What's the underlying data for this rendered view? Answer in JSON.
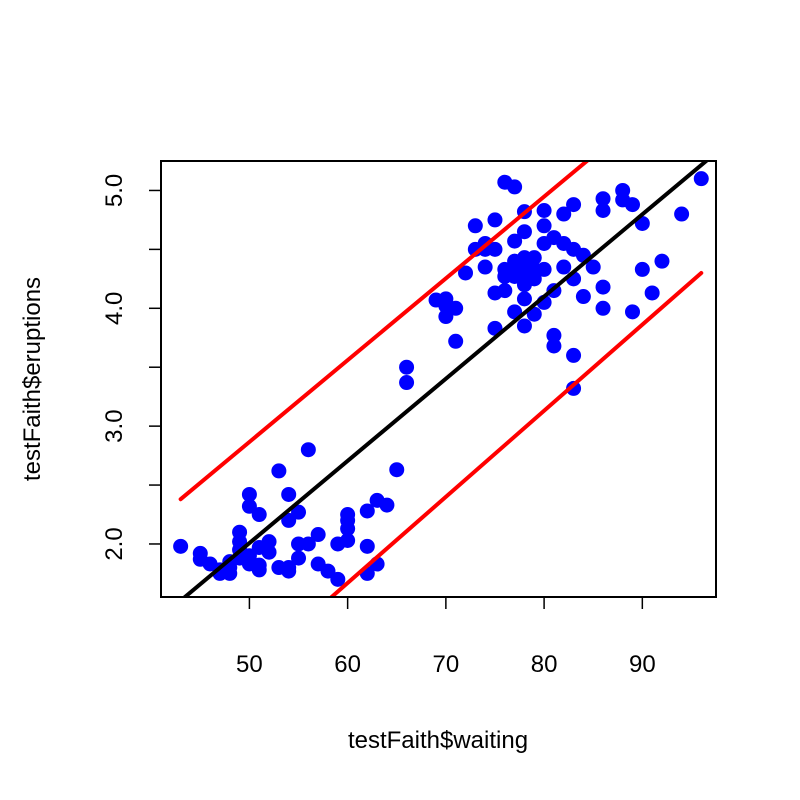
{
  "chart_data": {
    "type": "scatter",
    "title": "",
    "xlabel": "testFaith$waiting",
    "ylabel": "testFaith$eruptions",
    "xlim": [
      41,
      97.5
    ],
    "ylim": [
      1.55,
      5.25
    ],
    "x_ticks": [
      50,
      60,
      70,
      80,
      90
    ],
    "y_ticks": [
      2.0,
      2.5,
      3.0,
      3.5,
      4.0,
      4.5,
      5.0
    ],
    "y_tick_labels": [
      "2.0",
      "",
      "3.0",
      "",
      "4.0",
      "",
      "5.0"
    ],
    "grid": false,
    "legend": "none",
    "series": [
      {
        "kind": "points",
        "color": "#0000ff",
        "points": [
          [
            43,
            1.98
          ],
          [
            45,
            1.92
          ],
          [
            45,
            1.87
          ],
          [
            46,
            1.83
          ],
          [
            47,
            1.78
          ],
          [
            47,
            1.75
          ],
          [
            48,
            1.8
          ],
          [
            48,
            1.85
          ],
          [
            48,
            1.75
          ],
          [
            49,
            1.88
          ],
          [
            49,
            1.95
          ],
          [
            49,
            2.02
          ],
          [
            49,
            2.1
          ],
          [
            50,
            2.42
          ],
          [
            50,
            2.32
          ],
          [
            50,
            1.83
          ],
          [
            50,
            1.9
          ],
          [
            51,
            2.25
          ],
          [
            51,
            1.97
          ],
          [
            51,
            1.82
          ],
          [
            51,
            1.78
          ],
          [
            52,
            2.02
          ],
          [
            52,
            1.93
          ],
          [
            53,
            2.62
          ],
          [
            53,
            1.8
          ],
          [
            54,
            2.42
          ],
          [
            54,
            2.2
          ],
          [
            54,
            1.8
          ],
          [
            54,
            1.77
          ],
          [
            55,
            2.27
          ],
          [
            55,
            2.0
          ],
          [
            55,
            1.88
          ],
          [
            56,
            2.8
          ],
          [
            56,
            2.0
          ],
          [
            57,
            2.08
          ],
          [
            57,
            1.83
          ],
          [
            58,
            1.77
          ],
          [
            59,
            1.7
          ],
          [
            59,
            2.0
          ],
          [
            60,
            2.25
          ],
          [
            60,
            2.2
          ],
          [
            60,
            2.13
          ],
          [
            60,
            2.03
          ],
          [
            62,
            2.28
          ],
          [
            62,
            1.98
          ],
          [
            62,
            1.75
          ],
          [
            63,
            2.37
          ],
          [
            63,
            1.83
          ],
          [
            64,
            2.33
          ],
          [
            65,
            2.63
          ],
          [
            66,
            3.5
          ],
          [
            66,
            3.37
          ],
          [
            69,
            4.07
          ],
          [
            70,
            4.08
          ],
          [
            70,
            4.02
          ],
          [
            70,
            3.93
          ],
          [
            71,
            4.0
          ],
          [
            71,
            3.72
          ],
          [
            72,
            4.3
          ],
          [
            73,
            4.7
          ],
          [
            73,
            4.5
          ],
          [
            74,
            4.55
          ],
          [
            74,
            4.5
          ],
          [
            74,
            4.35
          ],
          [
            75,
            4.75
          ],
          [
            75,
            4.5
          ],
          [
            75,
            4.13
          ],
          [
            75,
            3.83
          ],
          [
            76,
            5.07
          ],
          [
            76,
            4.33
          ],
          [
            76,
            4.27
          ],
          [
            76,
            4.15
          ],
          [
            77,
            5.03
          ],
          [
            77,
            4.57
          ],
          [
            77,
            4.4
          ],
          [
            77,
            4.3
          ],
          [
            77,
            4.27
          ],
          [
            77,
            3.97
          ],
          [
            78,
            4.82
          ],
          [
            78,
            4.65
          ],
          [
            78,
            4.43
          ],
          [
            78,
            4.35
          ],
          [
            78,
            4.3
          ],
          [
            78,
            4.2
          ],
          [
            78,
            4.08
          ],
          [
            78,
            3.85
          ],
          [
            79,
            4.43
          ],
          [
            79,
            4.33
          ],
          [
            79,
            4.25
          ],
          [
            79,
            3.95
          ],
          [
            80,
            4.83
          ],
          [
            80,
            4.7
          ],
          [
            80,
            4.55
          ],
          [
            80,
            4.33
          ],
          [
            80,
            4.05
          ],
          [
            81,
            4.6
          ],
          [
            81,
            4.15
          ],
          [
            81,
            3.77
          ],
          [
            81,
            3.68
          ],
          [
            82,
            4.8
          ],
          [
            82,
            4.55
          ],
          [
            82,
            4.35
          ],
          [
            83,
            4.88
          ],
          [
            83,
            4.5
          ],
          [
            83,
            4.25
          ],
          [
            83,
            3.6
          ],
          [
            83,
            3.32
          ],
          [
            84,
            4.45
          ],
          [
            84,
            4.1
          ],
          [
            85,
            4.35
          ],
          [
            86,
            4.93
          ],
          [
            86,
            4.83
          ],
          [
            86,
            4.18
          ],
          [
            86,
            4.0
          ],
          [
            88,
            5.0
          ],
          [
            88,
            4.92
          ],
          [
            89,
            4.88
          ],
          [
            89,
            3.97
          ],
          [
            90,
            4.72
          ],
          [
            90,
            4.33
          ],
          [
            91,
            4.13
          ],
          [
            92,
            4.4
          ],
          [
            94,
            4.8
          ],
          [
            96,
            5.1
          ]
        ]
      },
      {
        "kind": "line",
        "name": "",
        "color": "#000000",
        "points": [
          [
            41,
            1.38
          ],
          [
            97.5,
            5.32
          ]
        ]
      },
      {
        "kind": "line",
        "name": "",
        "color": "#ff0000",
        "points": [
          [
            43,
            2.38
          ],
          [
            84.5,
            5.26
          ]
        ]
      },
      {
        "kind": "line",
        "name": "",
        "color": "#ff0000",
        "points": [
          [
            57,
            1.45
          ],
          [
            96,
            4.3
          ]
        ]
      }
    ]
  }
}
